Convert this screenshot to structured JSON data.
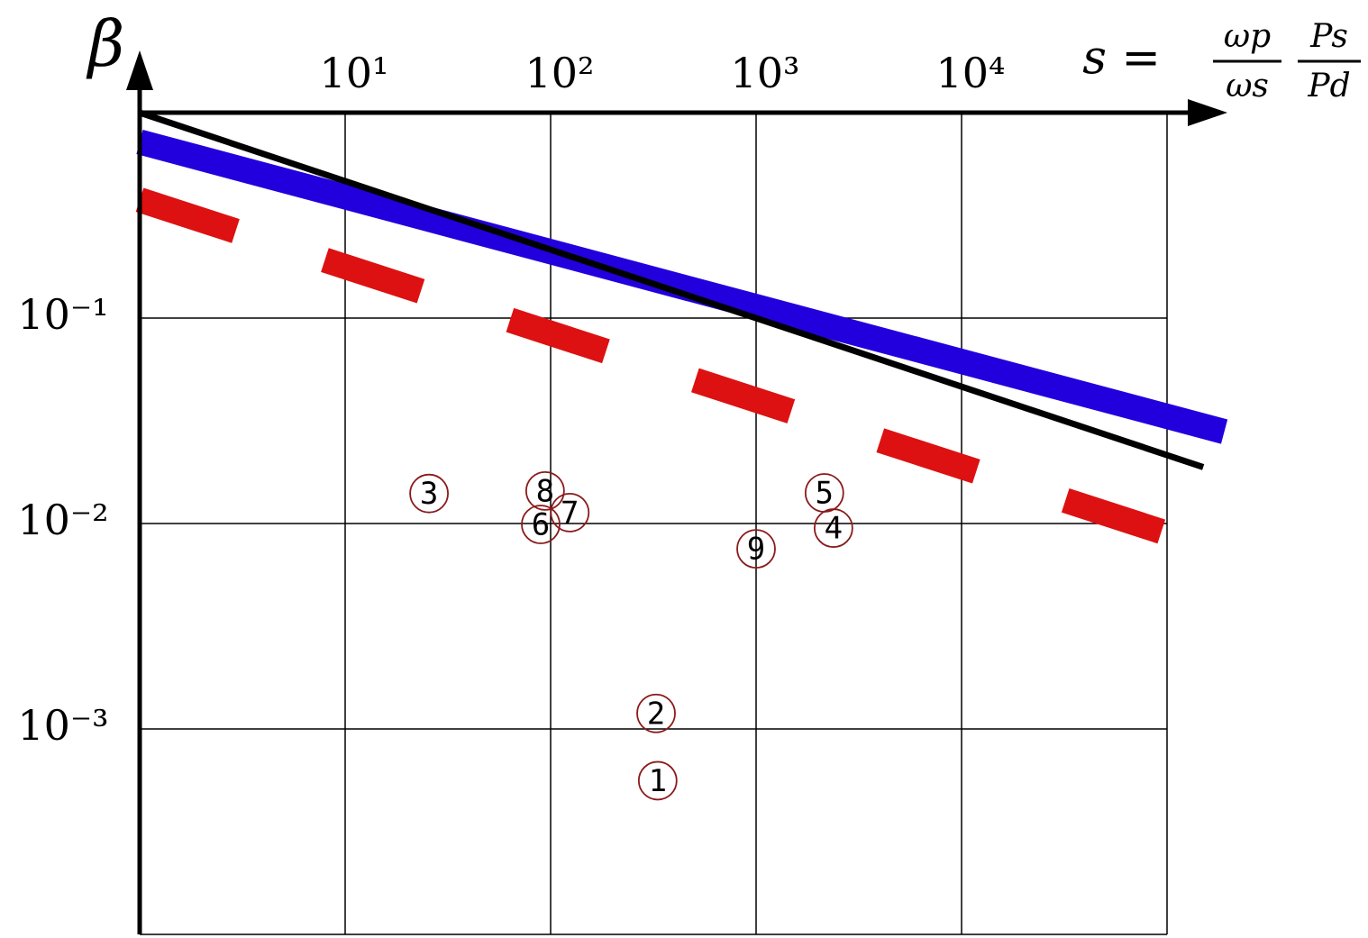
{
  "chart_data": {
    "type": "line",
    "log_x": true,
    "log_y": true,
    "grid": true,
    "y_label": "β",
    "x_label": {
      "lhs": "s =",
      "frac1": {
        "num": "ωp",
        "den": "ωs"
      },
      "frac2": {
        "num": "Ps",
        "den": "Pd"
      }
    },
    "xlim": [
      1,
      100000
    ],
    "ylim": [
      0.0001,
      1
    ],
    "xticks": [
      {
        "value": 10,
        "label": "10¹"
      },
      {
        "value": 100,
        "label": "10²"
      },
      {
        "value": 1000,
        "label": "10³"
      },
      {
        "value": 10000,
        "label": "10⁴"
      }
    ],
    "yticks": [
      {
        "value": 0.1,
        "label": "10⁻¹"
      },
      {
        "value": 0.01,
        "label": "10⁻²"
      },
      {
        "value": 0.001,
        "label": "10⁻³"
      }
    ],
    "series": [
      {
        "color": "#2200dd",
        "style": "solid-thick",
        "x": [
          1,
          190000
        ],
        "values": [
          0.72,
          0.028
        ]
      },
      {
        "color": "#000000",
        "style": "solid",
        "x": [
          1,
          150000
        ],
        "values": [
          1,
          0.0188
        ]
      },
      {
        "color": "#dd1111",
        "style": "dashed",
        "x": [
          1,
          150000
        ],
        "values": [
          0.376,
          0.00785
        ]
      }
    ],
    "points": {
      "color": "#8b1a1a",
      "labels": [
        "1",
        "2",
        "3",
        "4",
        "5",
        "6",
        "7",
        "8",
        "9"
      ],
      "x": [
        332,
        326,
        25.6,
        2380,
        2150,
        89.5,
        124,
        94,
        1000
      ],
      "values": [
        0.00056,
        0.00119,
        0.014,
        0.0095,
        0.0141,
        0.0099,
        0.0113,
        0.0144,
        0.00753
      ]
    }
  }
}
